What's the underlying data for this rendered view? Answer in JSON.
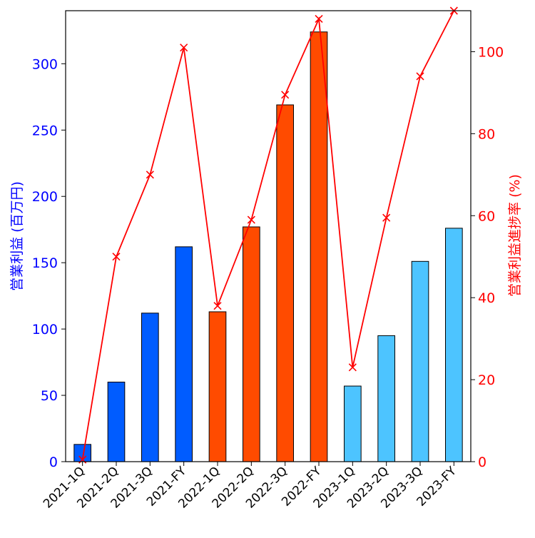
{
  "chart_data": {
    "type": "bar",
    "title": "",
    "xlabel": "",
    "categories": [
      "2021-1Q",
      "2021-2Q",
      "2021-3Q",
      "2021-FY",
      "2022-1Q",
      "2022-2Q",
      "2022-3Q",
      "2022-FY",
      "2023-1Q",
      "2023-2Q",
      "2023-3Q",
      "2023-FY"
    ],
    "bar_series": {
      "values": [
        13,
        60,
        112,
        162,
        113,
        177,
        269,
        324,
        57,
        95,
        151,
        176
      ],
      "colors": [
        "#005CFF",
        "#005CFF",
        "#005CFF",
        "#005CFF",
        "#FF4B00",
        "#FF4B00",
        "#FF4B00",
        "#FF4B00",
        "#4DC4FF",
        "#4DC4FF",
        "#4DC4FF",
        "#4DC4FF"
      ]
    },
    "line_series": {
      "values": [
        0.5,
        50,
        70,
        101,
        38,
        59,
        89.5,
        108,
        23,
        59.5,
        94,
        110
      ],
      "color": "#FF0000",
      "marker": "x"
    },
    "y_left": {
      "label": "営業利益 (百万円)",
      "ticks": [
        0,
        50,
        100,
        150,
        200,
        250,
        300
      ],
      "ylim": [
        0,
        340
      ],
      "color": "#0000FF"
    },
    "y_right": {
      "label": "営業利益進捗率 (%)",
      "ticks": [
        0,
        20,
        40,
        60,
        80,
        100
      ],
      "ylim": [
        0,
        110
      ],
      "color": "#FF0000"
    },
    "grid": false
  }
}
